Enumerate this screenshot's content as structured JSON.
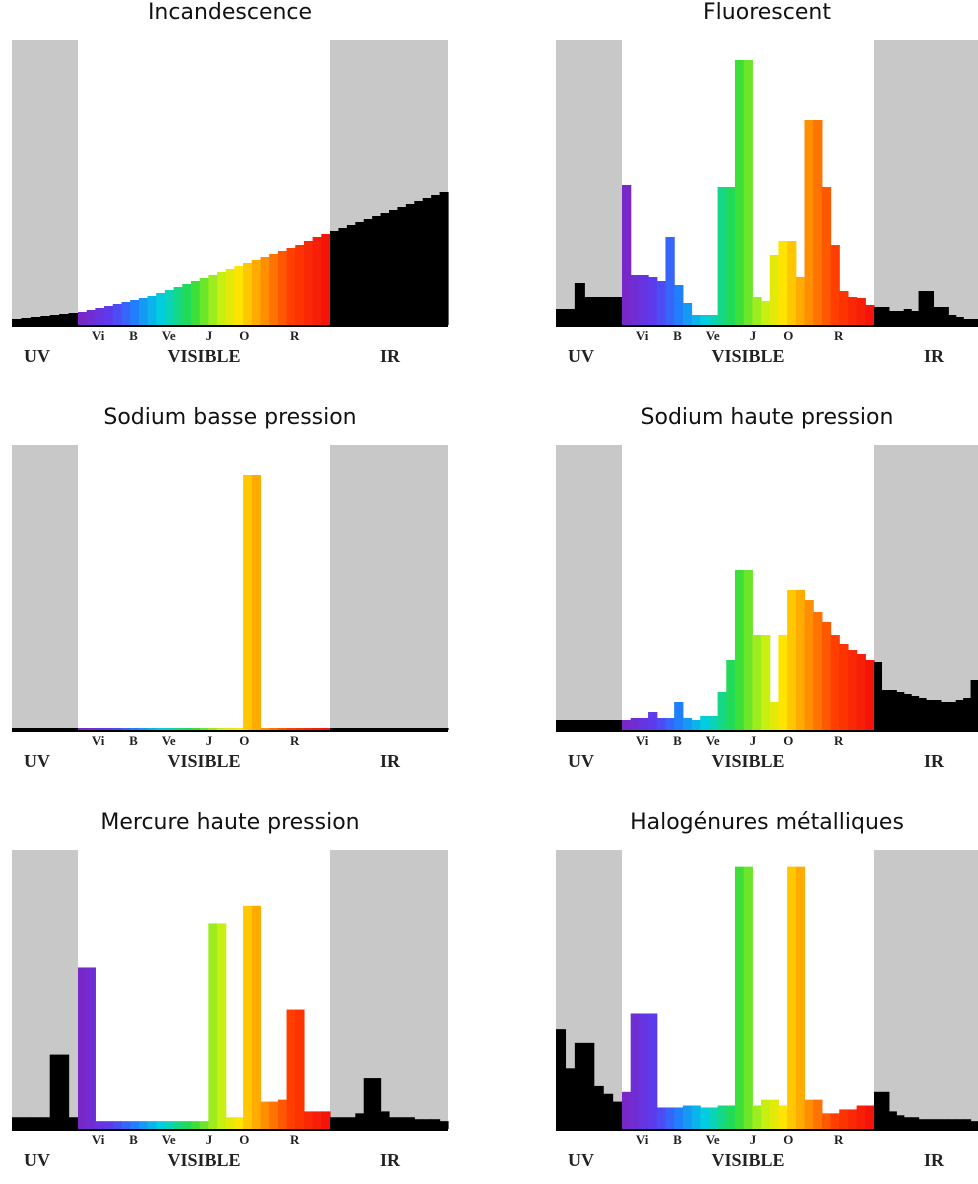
{
  "regions": {
    "uv": "UV",
    "visible": "VISIBLE",
    "ir": "IR"
  },
  "color_bands": [
    "Vi",
    "B",
    "Ve",
    "J",
    "O",
    "R"
  ],
  "region_colors": {
    "uv_ir_background": "#c8c8c8",
    "visible_background": "#ffffff",
    "non_visible_bars": "#000000"
  },
  "chart_data": [
    {
      "type": "bar",
      "title": "Incandescence",
      "uv": [
        6,
        7,
        8,
        9,
        10,
        11,
        12
      ],
      "visible": [
        13,
        15,
        17,
        19,
        21,
        23,
        25,
        27,
        29,
        32,
        35,
        38,
        41,
        44,
        47,
        50,
        53,
        56,
        59,
        62,
        65,
        68,
        71,
        74,
        77,
        80,
        84,
        88,
        91
      ],
      "ir": [
        94,
        97,
        100,
        103,
        106,
        109,
        112,
        115,
        118,
        121,
        124,
        127,
        130,
        133
      ]
    },
    {
      "type": "bar",
      "title": "Fluorescent",
      "uv": [
        16,
        16,
        42,
        28,
        28,
        28,
        28
      ],
      "visible": [
        140,
        50,
        50,
        48,
        44,
        88,
        40,
        22,
        10,
        10,
        10,
        138,
        138,
        265,
        265,
        28,
        24,
        70,
        84,
        84,
        48,
        205,
        205,
        138,
        80,
        34,
        28,
        27,
        20
      ],
      "ir": [
        18,
        18,
        14,
        14,
        16,
        14,
        34,
        34,
        18,
        18,
        10,
        8,
        6,
        6
      ]
    },
    {
      "type": "bar",
      "title": "Sodium basse pression",
      "uv": [
        2,
        2,
        2,
        2,
        2,
        2,
        2
      ],
      "visible": [
        2,
        2,
        2,
        2,
        2,
        2,
        2,
        2,
        2,
        2,
        2,
        2,
        2,
        2,
        2,
        2,
        2,
        2,
        2,
        255,
        255,
        2,
        2,
        2,
        2,
        2,
        2,
        2,
        2
      ],
      "ir": [
        2,
        2,
        2,
        2,
        2,
        2,
        2,
        2,
        2,
        2,
        2,
        2,
        2,
        2
      ]
    },
    {
      "type": "bar",
      "title": "Sodium haute pression",
      "uv": [
        10,
        10,
        10,
        10,
        10,
        10,
        10
      ],
      "visible": [
        10,
        12,
        12,
        18,
        12,
        12,
        28,
        12,
        10,
        14,
        14,
        38,
        70,
        160,
        160,
        95,
        95,
        28,
        95,
        140,
        140,
        130,
        118,
        108,
        95,
        86,
        80,
        76,
        70
      ],
      "ir": [
        68,
        40,
        40,
        38,
        36,
        34,
        32,
        30,
        30,
        28,
        28,
        30,
        32,
        50
      ]
    },
    {
      "type": "bar",
      "title": "Mercure haute pression",
      "uv": [
        12,
        12,
        12,
        12,
        76,
        76,
        12
      ],
      "visible": [
        165,
        165,
        8,
        8,
        8,
        8,
        8,
        8,
        8,
        8,
        8,
        8,
        8,
        8,
        8,
        210,
        210,
        12,
        12,
        228,
        228,
        28,
        28,
        30,
        122,
        122,
        18,
        18,
        18
      ],
      "ir": [
        12,
        12,
        12,
        16,
        52,
        52,
        18,
        12,
        12,
        12,
        10,
        10,
        10,
        8
      ]
    },
    {
      "type": "bar",
      "title": "Halogénures métalliques",
      "uv": [
        102,
        62,
        88,
        88,
        44,
        36,
        28
      ],
      "visible": [
        38,
        118,
        118,
        118,
        22,
        22,
        22,
        24,
        24,
        22,
        22,
        24,
        24,
        268,
        268,
        24,
        30,
        30,
        24,
        268,
        268,
        30,
        30,
        16,
        16,
        20,
        20,
        24,
        24
      ],
      "ir": [
        38,
        38,
        18,
        14,
        12,
        12,
        10,
        10,
        10,
        10,
        10,
        10,
        10,
        8
      ]
    }
  ]
}
